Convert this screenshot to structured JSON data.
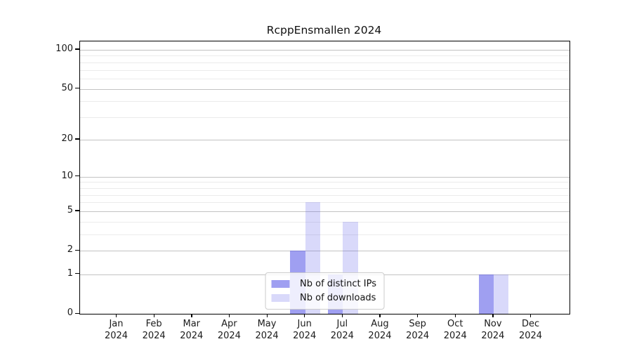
{
  "chart_data": {
    "type": "bar",
    "title": "RcppEnsmallen 2024",
    "months": [
      "Jan",
      "Feb",
      "Mar",
      "Apr",
      "May",
      "Jun",
      "Jul",
      "Aug",
      "Sep",
      "Oct",
      "Nov",
      "Dec"
    ],
    "year_label": "2024",
    "series": [
      {
        "name": "Nb of distinct IPs",
        "color": "#5050e6",
        "alpha": 0.55,
        "values": [
          0,
          0,
          0,
          0,
          0,
          2,
          1,
          0,
          0,
          0,
          1,
          0
        ]
      },
      {
        "name": "Nb of downloads",
        "color": "#5050e6",
        "alpha": 0.22,
        "values": [
          0,
          0,
          0,
          0,
          0,
          6,
          4,
          0,
          0,
          0,
          1,
          0
        ]
      }
    ],
    "y_scale": "log1p",
    "y_ticks": [
      0,
      1,
      2,
      5,
      10,
      20,
      50,
      100
    ],
    "y_minor_gridlines": [
      3,
      4,
      6,
      7,
      8,
      9,
      30,
      40,
      60,
      70,
      80,
      90
    ],
    "ylim": [
      0,
      116
    ],
    "xlabel": "",
    "ylabel": "",
    "grid": true,
    "legend_position": "lower center",
    "colors": {
      "grid_major": "#c3c3c3",
      "grid_minor": "#ebebeb",
      "axis": "#000000",
      "text": "#1a1a1a"
    }
  }
}
